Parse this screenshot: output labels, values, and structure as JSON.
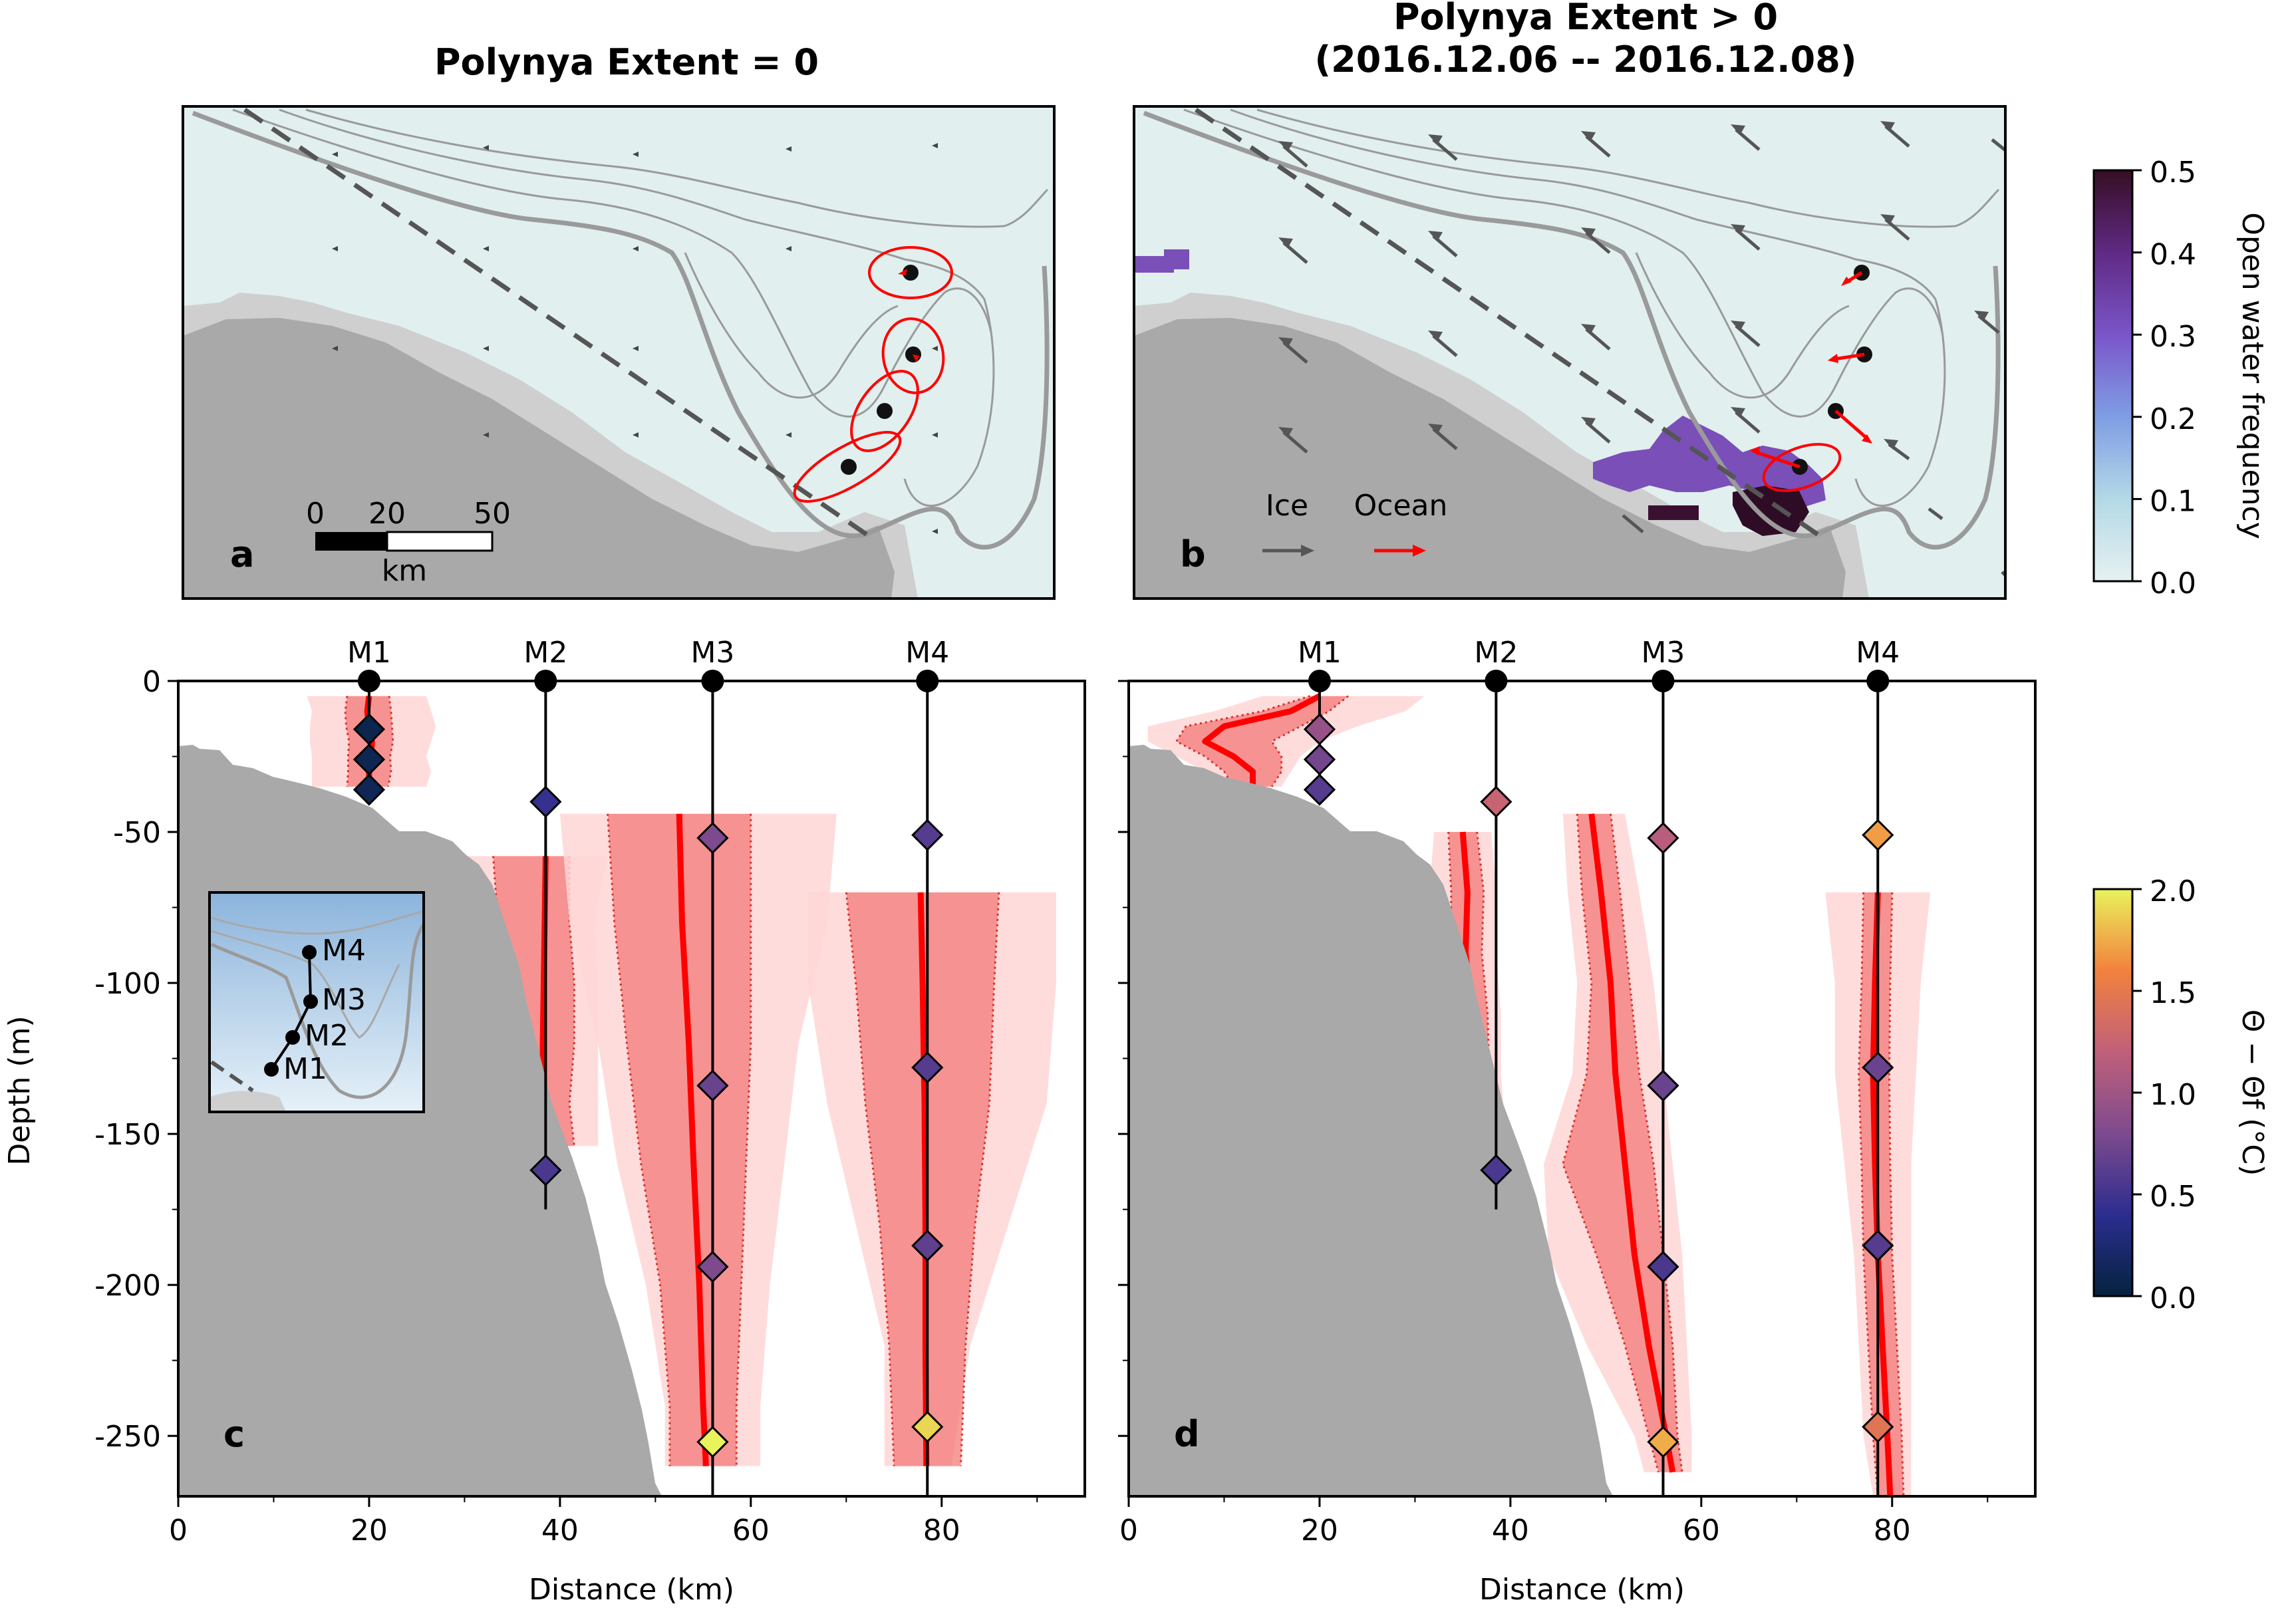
{
  "titles": {
    "left": "Polynya Extent = 0",
    "right_line1": "Polynya Extent > 0",
    "right_line2": "(2016.12.06 -- 2016.12.08)"
  },
  "panel_letters": [
    "a",
    "b",
    "c",
    "d"
  ],
  "map_legend": {
    "scale_ticks": [
      "0",
      "20",
      "50"
    ],
    "scale_unit": "km",
    "ice_label": "Ice",
    "ocean_label": "Ocean"
  },
  "colors": {
    "land": "#a9a9a9",
    "shelf_ice": "#cfcfcf",
    "sea": "#e1efef",
    "contour": "#9a9a9a",
    "mean_line": "#ff0000",
    "std_fill": "#f47a7a",
    "range_fill": "#ffd6d6",
    "ice_arrow": "#555555",
    "ocean_arrow": "#ff0000"
  },
  "colorbars": [
    {
      "label": "Open water frequency",
      "ticks": [
        "0.0",
        "0.1",
        "0.2",
        "0.3",
        "0.4",
        "0.5"
      ],
      "min": 0.0,
      "max": 0.5,
      "colormap": "dense"
    },
    {
      "label": "Θ − Θf (°C)",
      "ticks": [
        "0.0",
        "0.5",
        "1.0",
        "1.5",
        "2.0"
      ],
      "min": 0.0,
      "max": 2.0,
      "colormap": "thermal"
    }
  ],
  "inset": {
    "labels": [
      "M4",
      "M3",
      "M2",
      "M1"
    ]
  },
  "chart_data": {
    "type": "line",
    "xlabel": "Distance (km)",
    "ylabel": "Depth (m)",
    "xlim": [
      0,
      95
    ],
    "ylim": [
      -270,
      0
    ],
    "xticks": [
      "0",
      "20",
      "40",
      "60",
      "80"
    ],
    "yticks": [
      "0",
      "-50",
      "-100",
      "-150",
      "-200",
      "-250"
    ],
    "moorings": [
      {
        "name": "M1",
        "x": 20,
        "bottom": -36
      },
      {
        "name": "M2",
        "x": 38.5,
        "bottom": -175
      },
      {
        "name": "M3",
        "x": 56,
        "bottom": -270
      },
      {
        "name": "M4",
        "x": 78.5,
        "bottom": -270
      }
    ],
    "panels": [
      {
        "letter": "c",
        "instruments": [
          {
            "x": 20,
            "depth": -16,
            "temp": 0.08
          },
          {
            "x": 20,
            "depth": -26,
            "temp": 0.1
          },
          {
            "x": 20,
            "depth": -36,
            "temp": 0.12
          },
          {
            "x": 38.5,
            "depth": -40,
            "temp": 0.45
          },
          {
            "x": 38.5,
            "depth": -162,
            "temp": 0.55
          },
          {
            "x": 56,
            "depth": -52,
            "temp": 0.8
          },
          {
            "x": 56,
            "depth": -134,
            "temp": 0.7
          },
          {
            "x": 56,
            "depth": -194,
            "temp": 0.8
          },
          {
            "x": 56,
            "depth": -252,
            "temp": 2.0
          },
          {
            "x": 78.5,
            "depth": -51,
            "temp": 0.6
          },
          {
            "x": 78.5,
            "depth": -128,
            "temp": 0.6
          },
          {
            "x": 78.5,
            "depth": -187,
            "temp": 0.65
          },
          {
            "x": 78.5,
            "depth": -247,
            "temp": 1.9
          }
        ],
        "profiles": [
          {
            "mooring": "M1",
            "depth": [
              -5,
              -10,
              -15,
              -20,
              -25,
              -30,
              -35
            ],
            "mean": [
              20,
              19.8,
              20,
              20.3,
              20.2,
              20,
              20
            ],
            "std_lo": [
              17.7,
              17.5,
              17.6,
              17.9,
              17.8,
              17.8,
              17.7
            ],
            "std_hi": [
              22.1,
              22.3,
              22.4,
              22.5,
              22.2,
              22.3,
              22.0
            ],
            "min": [
              13.5,
              14,
              13.8,
              13.8,
              14,
              14,
              14
            ],
            "max": [
              26,
              26.5,
              27,
              26.5,
              26,
              26.5,
              26
            ]
          },
          {
            "mooring": "M2",
            "depth": [
              -58,
              -80,
              -100,
              -120,
              -140,
              -154
            ],
            "mean": [
              38.5,
              38.4,
              38.3,
              38.2,
              38.2,
              38.2
            ],
            "std_lo": [
              33,
              33.5,
              33.8,
              33.5,
              33.3,
              33.5
            ],
            "std_hi": [
              41,
              41,
              41.5,
              41.5,
              41,
              41.5
            ],
            "min": [
              28,
              28,
              29,
              29,
              29,
              29
            ],
            "max": [
              45,
              43.5,
              44,
              44,
              44,
              44
            ]
          },
          {
            "mooring": "M3",
            "depth": [
              -44,
              -80,
              -120,
              -160,
              -200,
              -240,
              -260
            ],
            "mean": [
              52.5,
              52.8,
              53.5,
              54,
              54.6,
              55,
              55.3
            ],
            "std_lo": [
              45,
              45.7,
              47,
              48.5,
              50.5,
              51.5,
              51.5
            ],
            "std_hi": [
              60,
              60,
              60,
              59.5,
              59,
              58.5,
              58.5
            ],
            "min": [
              40,
              41,
              44,
              46,
              49,
              51,
              51
            ],
            "max": [
              69,
              68,
              65,
              63.5,
              62,
              61,
              61
            ]
          },
          {
            "mooring": "M4",
            "depth": [
              -70,
              -100,
              -140,
              -180,
              -220,
              -260
            ],
            "mean": [
              77.8,
              78,
              78.2,
              78.3,
              78.3,
              78.4
            ],
            "std_lo": [
              70,
              71,
              72,
              73.5,
              74.5,
              75
            ],
            "std_hi": [
              86,
              85.5,
              85,
              83.5,
              82.5,
              82
            ],
            "min": [
              66,
              66,
              68,
              71,
              74,
              74
            ],
            "max": [
              92,
              92,
              91,
              87,
              83,
              81
            ]
          }
        ]
      },
      {
        "letter": "d",
        "instruments": [
          {
            "x": 20,
            "depth": -16,
            "temp": 0.95
          },
          {
            "x": 20,
            "depth": -26,
            "temp": 0.75
          },
          {
            "x": 20,
            "depth": -36,
            "temp": 0.6
          },
          {
            "x": 38.5,
            "depth": -40,
            "temp": 1.25
          },
          {
            "x": 38.5,
            "depth": -162,
            "temp": 0.55
          },
          {
            "x": 56,
            "depth": -52,
            "temp": 1.15
          },
          {
            "x": 56,
            "depth": -134,
            "temp": 0.7
          },
          {
            "x": 56,
            "depth": -194,
            "temp": 0.55
          },
          {
            "x": 56,
            "depth": -252,
            "temp": 1.75
          },
          {
            "x": 78.5,
            "depth": -51,
            "temp": 1.7
          },
          {
            "x": 78.5,
            "depth": -128,
            "temp": 0.7
          },
          {
            "x": 78.5,
            "depth": -187,
            "temp": 0.6
          },
          {
            "x": 78.5,
            "depth": -247,
            "temp": 1.45
          }
        ],
        "profiles": [
          {
            "mooring": "M1",
            "depth": [
              -5,
              -10,
              -15,
              -20,
              -25,
              -30,
              -35
            ],
            "mean": [
              20,
              17,
              10,
              8,
              11,
              13,
              13
            ],
            "std_lo": [
              19,
              14,
              6,
              5,
              8,
              10,
              11
            ],
            "std_hi": [
              23,
              21,
              18,
              15,
              16,
              16,
              15
            ],
            "min": [
              14,
              9,
              2,
              2,
              5,
              8,
              10
            ],
            "max": [
              31,
              29,
              24,
              20,
              18,
              17,
              16
            ]
          },
          {
            "mooring": "M2",
            "depth": [
              -50,
              -70,
              -90,
              -110,
              -130,
              -150,
              -155
            ],
            "mean": [
              35,
              35.5,
              35.3,
              36,
              36.2,
              36.5,
              37
            ],
            "std_lo": [
              33.5,
              33.8,
              33.7,
              34.5,
              34.8,
              35,
              35.5
            ],
            "std_hi": [
              36.5,
              37.2,
              37,
              37.6,
              37.8,
              38,
              38.3
            ],
            "min": [
              32,
              31.5,
              31,
              31,
              31.5,
              32,
              32.5
            ],
            "max": [
              38,
              38.5,
              38.5,
              39,
              39,
              39.5,
              39.5
            ]
          },
          {
            "mooring": "M3",
            "depth": [
              -44,
              -70,
              -100,
              -130,
              -160,
              -190,
              -220,
              -250,
              -262
            ],
            "mean": [
              48.5,
              49.5,
              50.5,
              51,
              52,
              53,
              54.5,
              56.3,
              57
            ],
            "std_lo": [
              47,
              47.5,
              48.5,
              48,
              45.5,
              49,
              52,
              54.5,
              55.5
            ],
            "std_hi": [
              50.5,
              51.5,
              52.5,
              53.5,
              55,
              56,
              57,
              57.5,
              58
            ],
            "min": [
              45.5,
              46,
              47,
              46.5,
              43.5,
              44,
              48,
              53,
              54
            ],
            "max": [
              52,
              53.5,
              55,
              56,
              57,
              58,
              58.5,
              59,
              59
            ]
          },
          {
            "mooring": "M4",
            "depth": [
              -70,
              -100,
              -130,
              -160,
              -190,
              -220,
              -250,
              -270
            ],
            "mean": [
              78.5,
              78.2,
              78,
              78.2,
              78.5,
              79,
              79.5,
              79.8
            ],
            "std_lo": [
              77,
              76.8,
              76.5,
              76.8,
              77,
              77.5,
              78,
              78.5
            ],
            "std_hi": [
              80,
              79.8,
              79.7,
              79.8,
              80,
              80.5,
              81,
              81.2
            ],
            "min": [
              73,
              74,
              74,
              75,
              76,
              76.5,
              77,
              78
            ],
            "max": [
              84,
              83,
              82.5,
              82,
              82,
              82,
              82,
              82
            ]
          }
        ]
      }
    ]
  }
}
